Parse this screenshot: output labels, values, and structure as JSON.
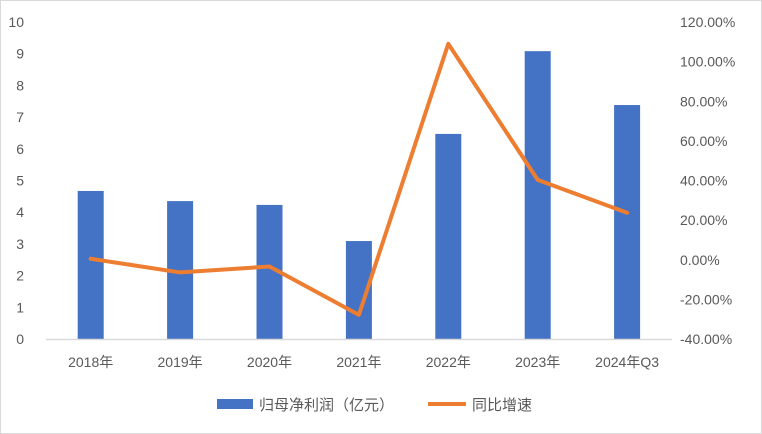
{
  "chart_data": {
    "type": "bar+line",
    "categories": [
      "2018年",
      "2019年",
      "2020年",
      "2021年",
      "2022年",
      "2023年",
      "2024年Q3"
    ],
    "series": [
      {
        "name": "归母净利润（亿元）",
        "type": "bar",
        "axis": "left",
        "color": "#4472C4",
        "values": [
          4.67,
          4.35,
          4.23,
          3.09,
          6.47,
          9.08,
          7.38
        ]
      },
      {
        "name": "同比增速",
        "type": "line",
        "axis": "right",
        "color": "#ED7D31",
        "values": [
          0.5,
          -6.4,
          -3.4,
          -27.8,
          109.0,
          40.3,
          23.7
        ]
      }
    ],
    "left_axis": {
      "ylim": [
        0,
        10
      ],
      "ticks": [
        "0",
        "1",
        "2",
        "3",
        "4",
        "5",
        "6",
        "7",
        "8",
        "9",
        "10"
      ]
    },
    "right_axis": {
      "ylim": [
        -40,
        120
      ],
      "ticks": [
        "-40.00%",
        "-20.00%",
        "0.00%",
        "20.00%",
        "40.00%",
        "60.00%",
        "80.00%",
        "100.00%",
        "120.00%"
      ]
    },
    "grid": false,
    "legend": "bottom",
    "title": ""
  }
}
